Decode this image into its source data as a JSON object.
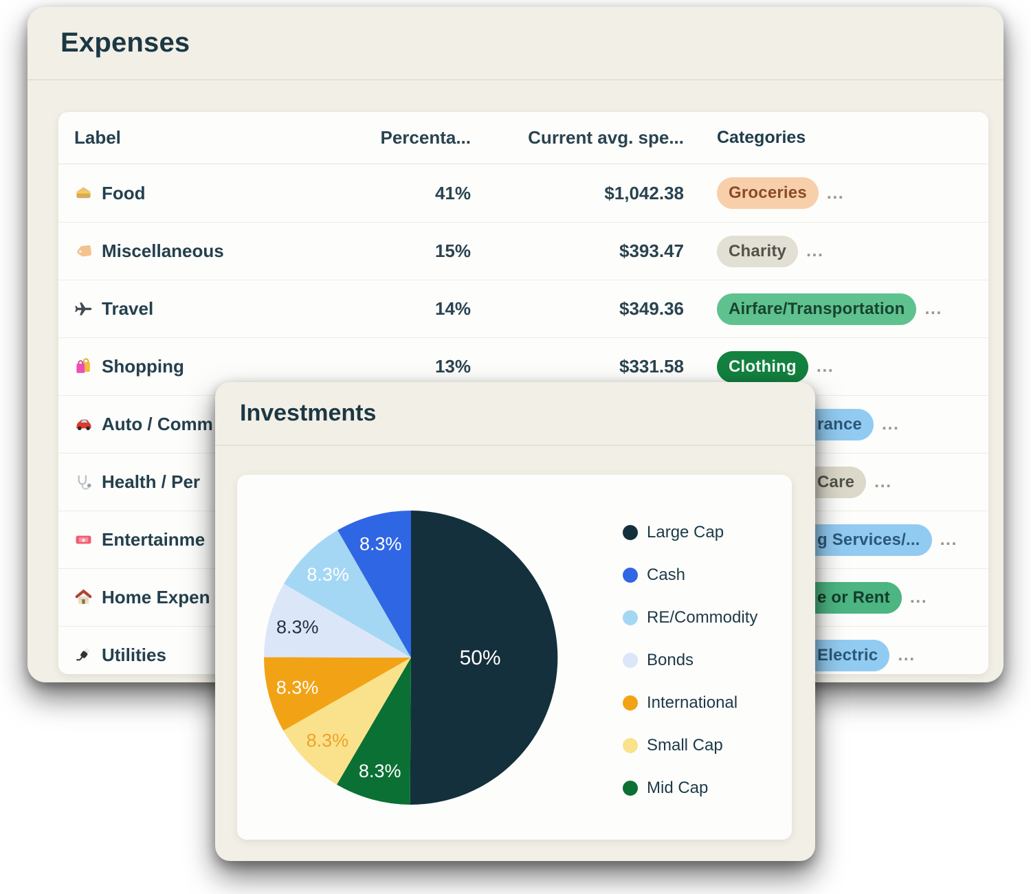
{
  "expenses": {
    "title": "Expenses",
    "columns": [
      "Label",
      "Percenta...",
      "Current avg. spe...",
      "Categories"
    ],
    "more_indicator": "...",
    "rows": [
      {
        "icon": "sandwich-icon",
        "label": "Food",
        "percentage": "41%",
        "amount": "$1,042.38",
        "category": {
          "text": "Groceries",
          "bg": "#f8cfab",
          "fg": "#8a4b26"
        },
        "clipped": false
      },
      {
        "icon": "tag-icon",
        "label": "Miscellaneous",
        "percentage": "15%",
        "amount": "$393.47",
        "category": {
          "text": "Charity",
          "bg": "#e2dfd4",
          "fg": "#53524a"
        },
        "clipped": false
      },
      {
        "icon": "airplane-icon",
        "label": "Travel",
        "percentage": "14%",
        "amount": "$349.36",
        "category": {
          "text": "Airfare/Transportation",
          "bg": "#5fc28e",
          "fg": "#17432f"
        },
        "clipped": false
      },
      {
        "icon": "shopping-bags-icon",
        "label": "Shopping",
        "percentage": "13%",
        "amount": "$331.58",
        "category": {
          "text": "Clothing",
          "bg": "#13813f",
          "fg": "#f4f8f4"
        },
        "clipped": false
      },
      {
        "icon": "car-icon",
        "label": "Auto / Comm",
        "percentage": "",
        "amount": "",
        "category": {
          "text": "rance",
          "bg": "#92cbf1",
          "fg": "#2b5878"
        },
        "clipped": true
      },
      {
        "icon": "stethoscope-icon",
        "label": "Health / Per",
        "percentage": "",
        "amount": "",
        "category": {
          "text": "Care",
          "bg": "#dcd9ca",
          "fg": "#52524a"
        },
        "clipped": true
      },
      {
        "icon": "ticket-icon",
        "label": "Entertainme",
        "percentage": "",
        "amount": "",
        "category": {
          "text": "g Services/...",
          "bg": "#92cbf1",
          "fg": "#2b5878"
        },
        "clipped": true
      },
      {
        "icon": "house-icon",
        "label": "Home Expen",
        "percentage": "",
        "amount": "",
        "category": {
          "text": "e or Rent",
          "bg": "#4cb582",
          "fg": "#123c2c"
        },
        "clipped": true
      },
      {
        "icon": "plug-icon",
        "label": "Utilities",
        "percentage": "",
        "amount": "",
        "category": {
          "text": "Electric",
          "bg": "#92cbf1",
          "fg": "#2b5878"
        },
        "clipped": true
      }
    ]
  },
  "investments": {
    "title": "Investments",
    "chart_data": {
      "type": "pie",
      "title": "Investments",
      "legend_position": "right",
      "data_label_format": "percent",
      "slices_clockwise_from_top": [
        {
          "label": "Large Cap",
          "value": 50,
          "display": "50%",
          "color": "#14303c",
          "label_color": "#ffffff"
        },
        {
          "label": "Mid Cap",
          "value": 8.3,
          "display": "8.3%",
          "color": "#0b7034",
          "label_color": "#ffffff"
        },
        {
          "label": "Small Cap",
          "value": 8.3,
          "display": "8.3%",
          "color": "#fae28c",
          "label_color": "#f0a12a"
        },
        {
          "label": "International",
          "value": 8.3,
          "display": "8.3%",
          "color": "#f2a315",
          "label_color": "#ffffff"
        },
        {
          "label": "Bonds",
          "value": 8.3,
          "display": "8.3%",
          "color": "#dbe7f8",
          "label_color": "#22323f"
        },
        {
          "label": "RE/Commodity",
          "value": 8.3,
          "display": "8.3%",
          "color": "#a4d7f4",
          "label_color": "#ffffff"
        },
        {
          "label": "Cash",
          "value": 8.3,
          "display": "8.3%",
          "color": "#2f66e3",
          "label_color": "#ffffff"
        }
      ],
      "legend": [
        {
          "label": "Large Cap",
          "color": "#14303c"
        },
        {
          "label": "Cash",
          "color": "#2f66e3"
        },
        {
          "label": "RE/Commodity",
          "color": "#a4d7f4"
        },
        {
          "label": "Bonds",
          "color": "#dbe7f8"
        },
        {
          "label": "International",
          "color": "#f2a315"
        },
        {
          "label": "Small Cap",
          "color": "#fae28c"
        },
        {
          "label": "Mid Cap",
          "color": "#0b7034"
        }
      ]
    }
  }
}
